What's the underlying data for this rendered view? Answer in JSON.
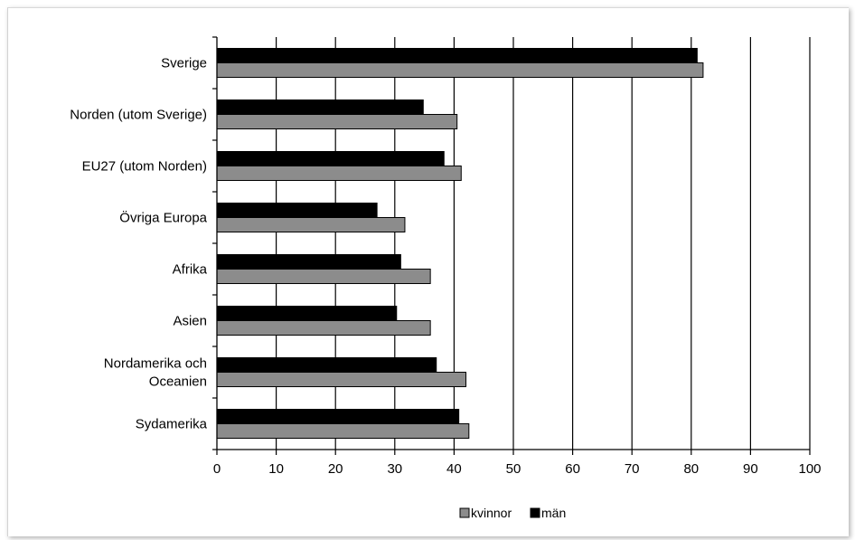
{
  "chart_data": {
    "type": "bar",
    "orientation": "horizontal",
    "categories": [
      "Sverige",
      "Norden (utom Sverige)",
      "EU27 (utom Norden)",
      "Övriga Europa",
      "Afrika",
      "Asien",
      "Nordamerika och Oceanien",
      "Sydamerika"
    ],
    "category_lines": [
      [
        "Sverige"
      ],
      [
        "Norden (utom Sverige)"
      ],
      [
        "EU27 (utom Norden)"
      ],
      [
        "Övriga Europa"
      ],
      [
        "Afrika"
      ],
      [
        "Asien"
      ],
      [
        "Nordamerika och",
        "Oceanien"
      ],
      [
        "Sydamerika"
      ]
    ],
    "series": [
      {
        "name": "män",
        "values": [
          81,
          34.8,
          38.3,
          27,
          31,
          30.3,
          37,
          40.8
        ]
      },
      {
        "name": "kvinnor",
        "values": [
          82,
          40.5,
          41.2,
          31.7,
          36,
          36,
          42,
          42.5
        ]
      }
    ],
    "xlim": [
      0,
      100
    ],
    "xticks": [
      "0",
      "10",
      "20",
      "30",
      "40",
      "50",
      "60",
      "70",
      "80",
      "90",
      "100"
    ],
    "title": "",
    "xlabel": "",
    "ylabel": "",
    "grid": "vertical",
    "legend_position": "bottom",
    "legend": [
      {
        "label": "kvinnor",
        "color": "#8c8c8c"
      },
      {
        "label": "män",
        "color": "#000000"
      }
    ],
    "colors": {
      "män": "#000000",
      "kvinnor": "#8c8c8c"
    }
  }
}
